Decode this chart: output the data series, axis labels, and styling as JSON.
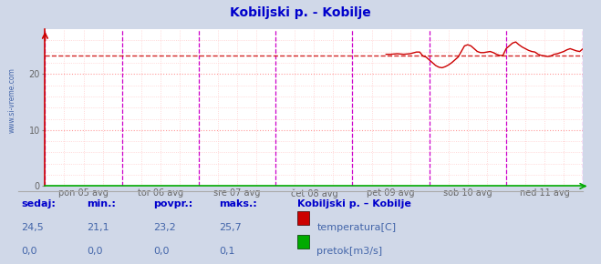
{
  "title": "Kobiljski p. - Kobilje",
  "title_color": "#0000cc",
  "bg_color": "#d0d8e8",
  "plot_bg_color": "#ffffff",
  "x_min": 0,
  "x_max": 336,
  "y_min": 0,
  "y_max": 28,
  "y_ticks": [
    0,
    10,
    20
  ],
  "x_tick_labels": [
    "pon 05 avg",
    "tor 06 avg",
    "sre 07 avg",
    "čet 08 avg",
    "pet 09 avg",
    "sob 10 avg",
    "ned 11 avg"
  ],
  "x_tick_positions": [
    24,
    72,
    120,
    168,
    216,
    264,
    312
  ],
  "vline_color": "#cc00cc",
  "avg_line_value": 23.2,
  "avg_line_color": "#cc0000",
  "temp_line_color": "#cc0000",
  "axis_color_bottom": "#00aa00",
  "axis_color_left": "#cc0000",
  "watermark_color": "#4466aa",
  "left_label": "www.si-vreme.com",
  "legend_title": "Kobiljski p. – Kobilje",
  "legend_title_color": "#0000cc",
  "legend_items": [
    "temperatura[C]",
    "pretok[m3/s]"
  ],
  "legend_colors": [
    "#cc0000",
    "#00aa00"
  ],
  "footer_labels": [
    "sedaj:",
    "min.:",
    "povpr.:",
    "maks.:"
  ],
  "footer_temp": [
    "24,5",
    "21,1",
    "23,2",
    "25,7"
  ],
  "footer_pretok": [
    "0,0",
    "0,0",
    "0,0",
    "0,1"
  ],
  "footer_label_color": "#0000cc",
  "footer_value_color": "#4466aa",
  "temp_data_x": [
    213,
    216,
    220,
    224,
    228,
    232,
    234,
    236,
    238,
    240,
    242,
    244,
    246,
    248,
    250,
    252,
    254,
    256,
    258,
    260,
    262,
    264,
    266,
    268,
    270,
    272,
    274,
    276,
    278,
    280,
    282,
    284,
    286,
    288,
    290,
    292,
    294,
    296,
    298,
    300,
    302,
    304,
    306,
    308,
    310,
    312,
    314,
    316,
    318,
    320,
    322,
    324,
    326,
    328,
    330,
    332,
    334,
    336
  ],
  "temp_data_y": [
    23.5,
    23.5,
    23.6,
    23.5,
    23.6,
    23.9,
    23.9,
    23.2,
    23.0,
    22.5,
    22.0,
    21.5,
    21.2,
    21.1,
    21.3,
    21.6,
    22.0,
    22.5,
    23.0,
    24.0,
    25.0,
    25.2,
    25.0,
    24.5,
    24.0,
    23.8,
    23.8,
    23.9,
    24.0,
    23.8,
    23.5,
    23.3,
    23.3,
    24.5,
    25.0,
    25.5,
    25.7,
    25.2,
    24.8,
    24.5,
    24.2,
    24.0,
    23.9,
    23.5,
    23.3,
    23.2,
    23.1,
    23.2,
    23.5,
    23.6,
    23.8,
    24.0,
    24.3,
    24.5,
    24.3,
    24.1,
    24.0,
    24.5
  ]
}
